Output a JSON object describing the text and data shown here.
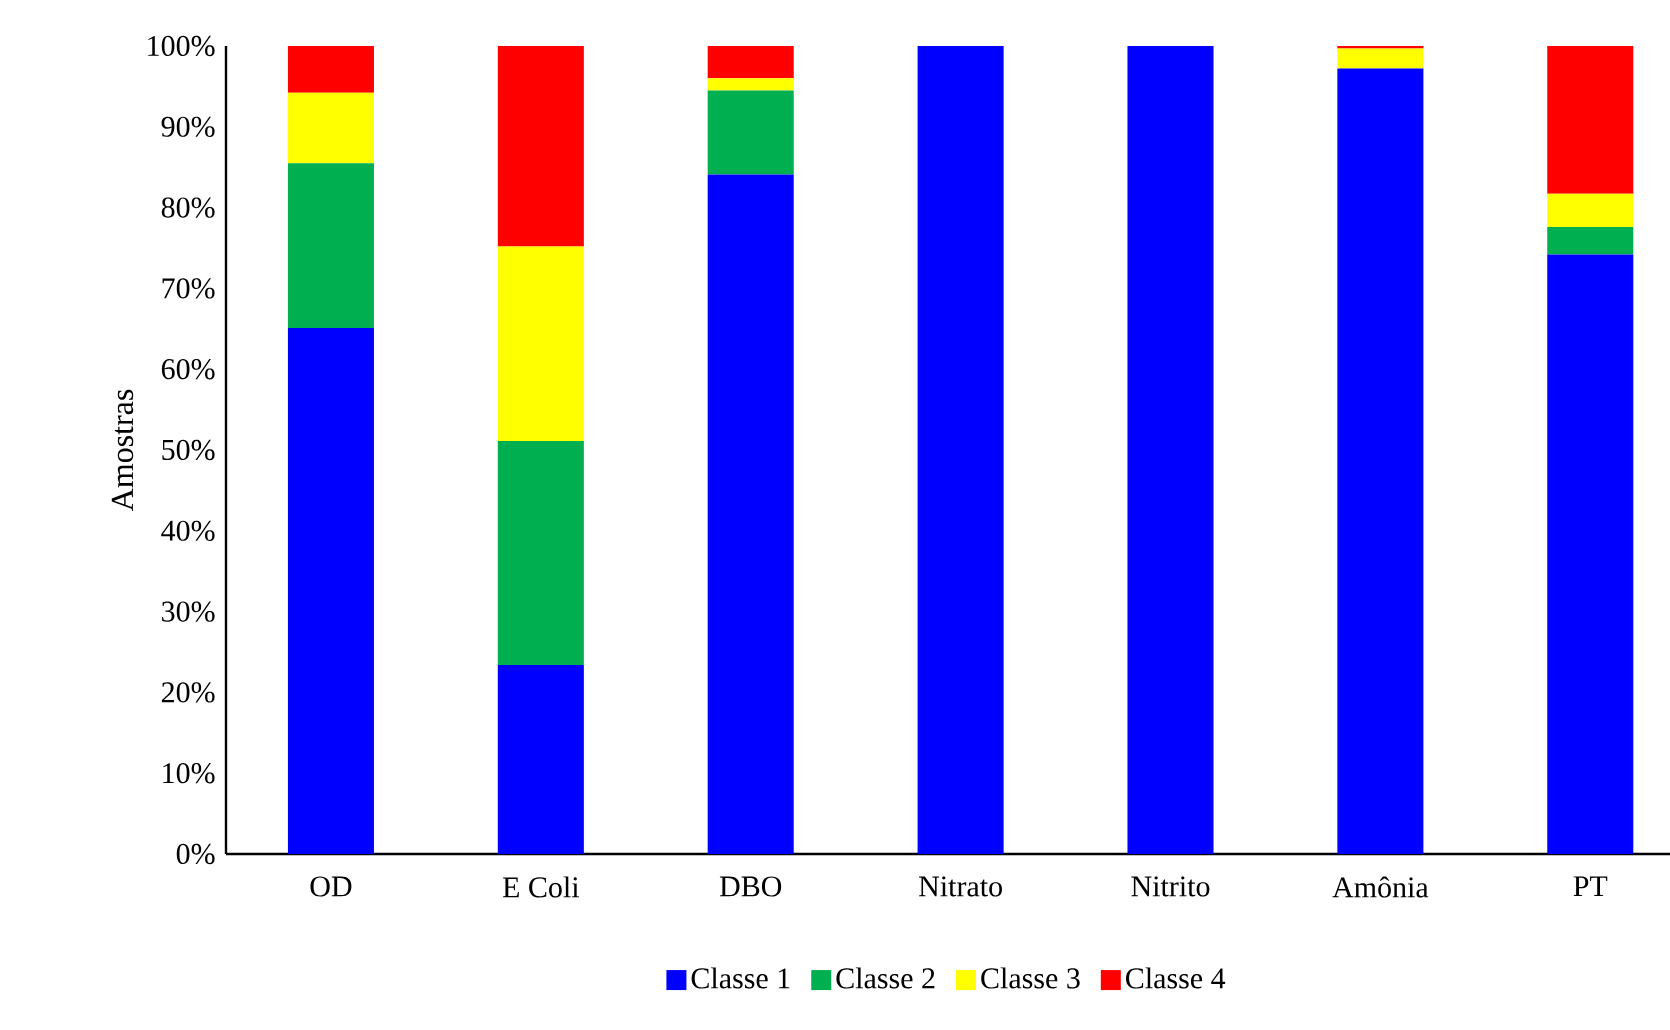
{
  "chart_data": {
    "type": "bar",
    "stacked": true,
    "ylabel": "Amostras",
    "categories": [
      "OD",
      "E Coli",
      "DBO",
      "Nitrato",
      "Nitrito",
      "Amônia",
      "PT"
    ],
    "series": [
      {
        "name": "Classe 1",
        "color": "#0000ff",
        "values": [
          65.1,
          23.4,
          84.1,
          100,
          100,
          97.2,
          74.2
        ]
      },
      {
        "name": "Classe 2",
        "color": "#00b050",
        "values": [
          20.4,
          27.7,
          10.4,
          0,
          0,
          0,
          3.4
        ]
      },
      {
        "name": "Classe 3",
        "color": "#ffff00",
        "values": [
          8.7,
          24.1,
          1.5,
          0,
          0,
          2.5,
          4.1
        ]
      },
      {
        "name": "Classe 4",
        "color": "#ff0000",
        "values": [
          5.8,
          24.8,
          4.0,
          0,
          0,
          0.3,
          18.3
        ]
      }
    ],
    "ylim": [
      0,
      100
    ],
    "yticks": [
      {
        "value": 0,
        "label": "0%"
      },
      {
        "value": 10,
        "label": "10%"
      },
      {
        "value": 20,
        "label": "20%"
      },
      {
        "value": 30,
        "label": "30%"
      },
      {
        "value": 40,
        "label": "40%"
      },
      {
        "value": 50,
        "label": "50%"
      },
      {
        "value": 60,
        "label": "60%"
      },
      {
        "value": 70,
        "label": "70%"
      },
      {
        "value": 80,
        "label": "80%"
      },
      {
        "value": 90,
        "label": "90%"
      },
      {
        "value": 100,
        "label": "100%"
      }
    ],
    "legend": "bottom",
    "grid": false
  }
}
